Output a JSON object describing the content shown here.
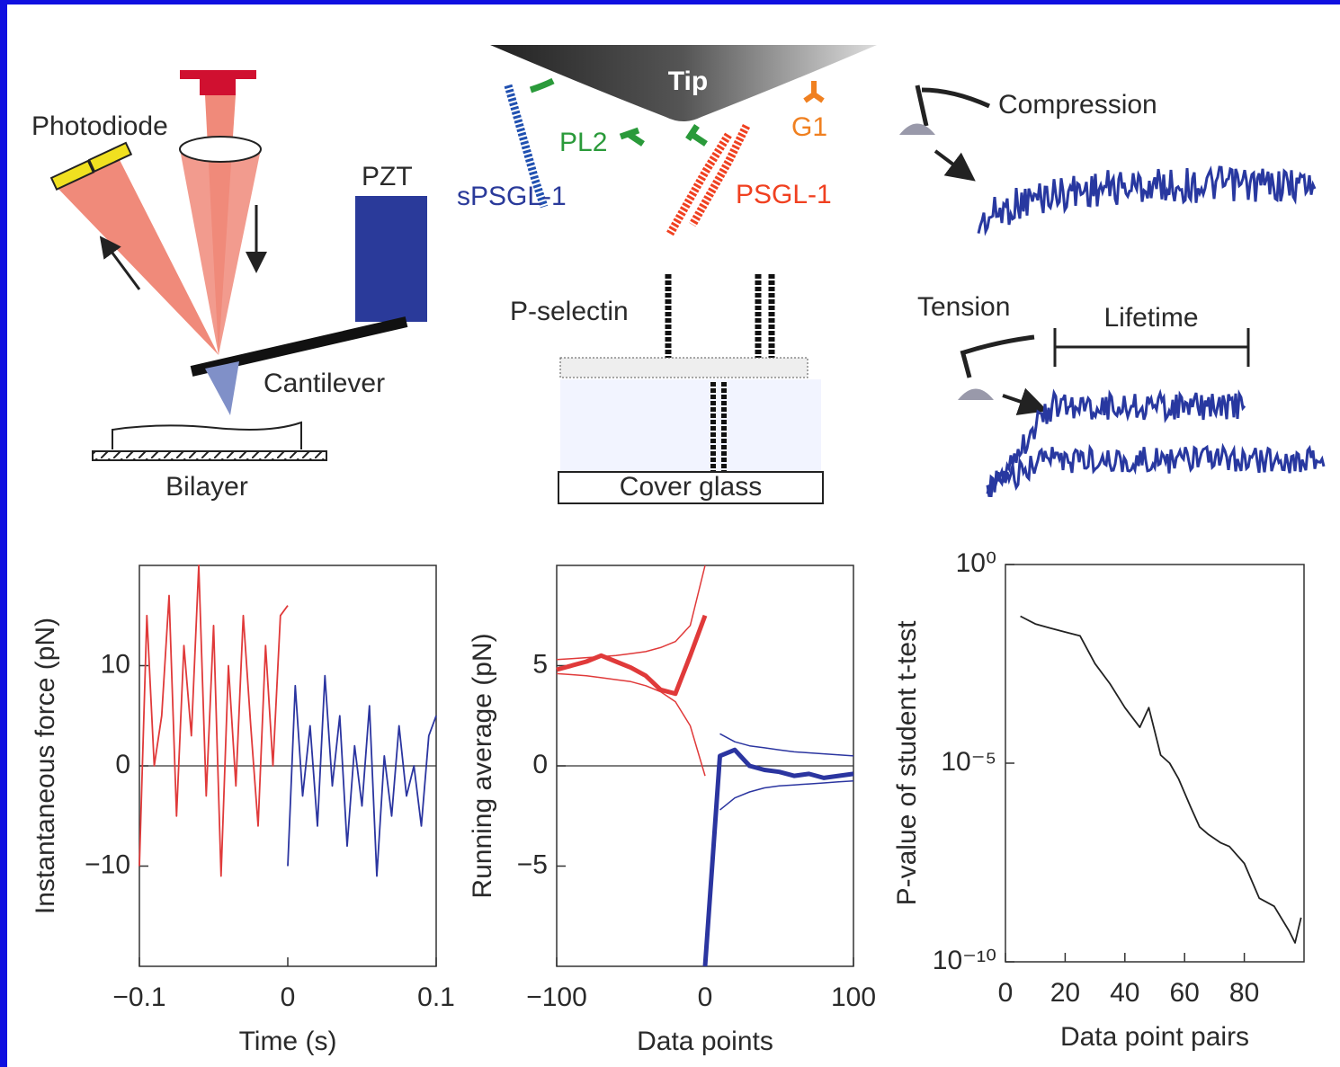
{
  "diagram": {
    "apparatus": {
      "photodiode": "Photodiode",
      "pzt": "PZT",
      "cantilever": "Cantilever",
      "bilayer": "Bilayer"
    },
    "molecules": {
      "tip": "Tip",
      "pl2": "PL2",
      "g1": "G1",
      "spsgl1": "sPSGL-1",
      "psgl1": "PSGL-1",
      "pselectin": "P-selectin",
      "cover_glass": "Cover glass"
    },
    "traces": {
      "compression": "Compression",
      "tension": "Tension",
      "lifetime": "Lifetime"
    }
  },
  "chart_data": [
    {
      "type": "line",
      "xlabel": "Time (s)",
      "ylabel": "Instantaneous force (pN)",
      "xlim": [
        -0.1,
        0.1
      ],
      "xticks": [
        {
          "value": -0.1,
          "label": "−0.1"
        },
        0,
        0.1
      ],
      "ylim": [
        -20,
        20
      ],
      "yticks": [
        10,
        0,
        {
          "value": -10,
          "label": "−10"
        }
      ],
      "zero_line": true,
      "x": [
        -0.1,
        -0.095,
        -0.09,
        -0.085,
        -0.08,
        -0.075,
        -0.07,
        -0.065,
        -0.06,
        -0.055,
        -0.05,
        -0.045,
        -0.04,
        -0.035,
        -0.03,
        -0.025,
        -0.02,
        -0.015,
        -0.01,
        -0.005,
        0,
        0.005,
        0.01,
        0.015,
        0.02,
        0.025,
        0.03,
        0.035,
        0.04,
        0.045,
        0.05,
        0.055,
        0.06,
        0.065,
        0.07,
        0.075,
        0.08,
        0.085,
        0.09,
        0.095,
        0.1
      ],
      "series": [
        {
          "color": "#e03a3a",
          "line_width": 1.8,
          "values": [
            -10,
            15,
            0,
            5,
            17,
            -5,
            12,
            3,
            20,
            -3,
            14,
            -11,
            10,
            -2,
            15,
            4,
            -6,
            12,
            0,
            15,
            16,
            null,
            null,
            null,
            null,
            null,
            null,
            null,
            null,
            null,
            null,
            null,
            null,
            null,
            null,
            null,
            null,
            null,
            null,
            null,
            null
          ]
        },
        {
          "color": "#2b35a0",
          "line_width": 1.8,
          "values": [
            null,
            null,
            null,
            null,
            null,
            null,
            null,
            null,
            null,
            null,
            null,
            null,
            null,
            null,
            null,
            null,
            null,
            null,
            null,
            null,
            -10,
            8,
            -3,
            4,
            -6,
            9,
            -2,
            5,
            -8,
            2,
            -4,
            6,
            -11,
            1,
            -5,
            4,
            -3,
            0,
            -6,
            3,
            5
          ]
        }
      ]
    },
    {
      "type": "line",
      "xlabel": "Data points",
      "ylabel": "Running average (pN)",
      "xlim": [
        -100,
        100
      ],
      "xticks": [
        {
          "value": -100,
          "label": "−100"
        },
        0,
        100
      ],
      "ylim": [
        -10,
        10
      ],
      "yticks": [
        5,
        0,
        {
          "value": -5,
          "label": "−5"
        }
      ],
      "zero_line": true,
      "x": [
        -100,
        -90,
        -80,
        -70,
        -60,
        -50,
        -40,
        -30,
        -20,
        -10,
        0,
        10,
        20,
        30,
        40,
        50,
        60,
        70,
        80,
        90,
        100
      ],
      "series": [
        {
          "color": "#e03a3a",
          "line_width": 1.5,
          "values": [
            5.3,
            5.35,
            5.4,
            5.45,
            5.5,
            5.6,
            5.7,
            5.9,
            6.2,
            7.0,
            10,
            null,
            null,
            null,
            null,
            null,
            null,
            null,
            null,
            null,
            null
          ]
        },
        {
          "color": "#e03a3a",
          "line_width": 1.5,
          "values": [
            4.6,
            4.55,
            4.5,
            4.4,
            4.3,
            4.2,
            4.0,
            3.7,
            3.2,
            2.0,
            -0.5,
            null,
            null,
            null,
            null,
            null,
            null,
            null,
            null,
            null,
            null
          ]
        },
        {
          "color": "#2b35a0",
          "line_width": 1.5,
          "values": [
            null,
            null,
            null,
            null,
            null,
            null,
            null,
            null,
            null,
            null,
            null,
            1.6,
            1.2,
            1.0,
            0.9,
            0.8,
            0.7,
            0.65,
            0.6,
            0.55,
            0.5
          ]
        },
        {
          "color": "#2b35a0",
          "line_width": 1.5,
          "values": [
            null,
            null,
            null,
            null,
            null,
            null,
            null,
            null,
            null,
            null,
            null,
            -2.2,
            -1.6,
            -1.3,
            -1.1,
            -1.0,
            -0.95,
            -0.9,
            -0.85,
            -0.8,
            -0.75
          ]
        },
        {
          "color": "#e03a3a",
          "line_width": 5,
          "values": [
            4.8,
            5.0,
            5.2,
            5.5,
            5.2,
            4.9,
            4.5,
            3.8,
            3.6,
            5.5,
            7.5,
            null,
            null,
            null,
            null,
            null,
            null,
            null,
            null,
            null,
            null
          ]
        },
        {
          "color": "#2b35a0",
          "line_width": 5,
          "values": [
            null,
            null,
            null,
            null,
            null,
            null,
            null,
            null,
            null,
            null,
            -10,
            0.5,
            0.8,
            0,
            -0.2,
            -0.3,
            -0.5,
            -0.4,
            -0.6,
            -0.5,
            -0.4
          ]
        }
      ]
    },
    {
      "type": "line",
      "xlabel": "Data point pairs",
      "ylabel": "P-value of student t-test",
      "xlim": [
        0,
        100
      ],
      "xticks": [
        0,
        20,
        40,
        60,
        80
      ],
      "ylog": true,
      "ylim": [
        1e-10,
        1
      ],
      "yticks": [
        {
          "value": 1,
          "label": "10⁰"
        },
        {
          "value": 1e-05,
          "label": "10⁻⁵"
        },
        {
          "value": 1e-10,
          "label": "10⁻¹⁰"
        }
      ],
      "x": [
        5,
        10,
        15,
        20,
        25,
        30,
        35,
        40,
        45,
        48,
        52,
        55,
        58,
        62,
        65,
        68,
        72,
        75,
        80,
        85,
        90,
        95,
        97,
        99
      ],
      "series": [
        {
          "color": "#222222",
          "line_width": 1.8,
          "values": [
            0.05,
            0.032,
            0.025,
            0.02,
            0.016,
            0.0032,
            0.001,
            0.00025,
            8e-05,
            0.00025,
            1.6e-05,
            1e-05,
            4e-06,
            8e-07,
            2.5e-07,
            1.6e-07,
            1e-07,
            8e-08,
            3e-08,
            4e-09,
            2.5e-09,
            6e-10,
            3e-10,
            1.3e-09
          ]
        }
      ]
    }
  ]
}
